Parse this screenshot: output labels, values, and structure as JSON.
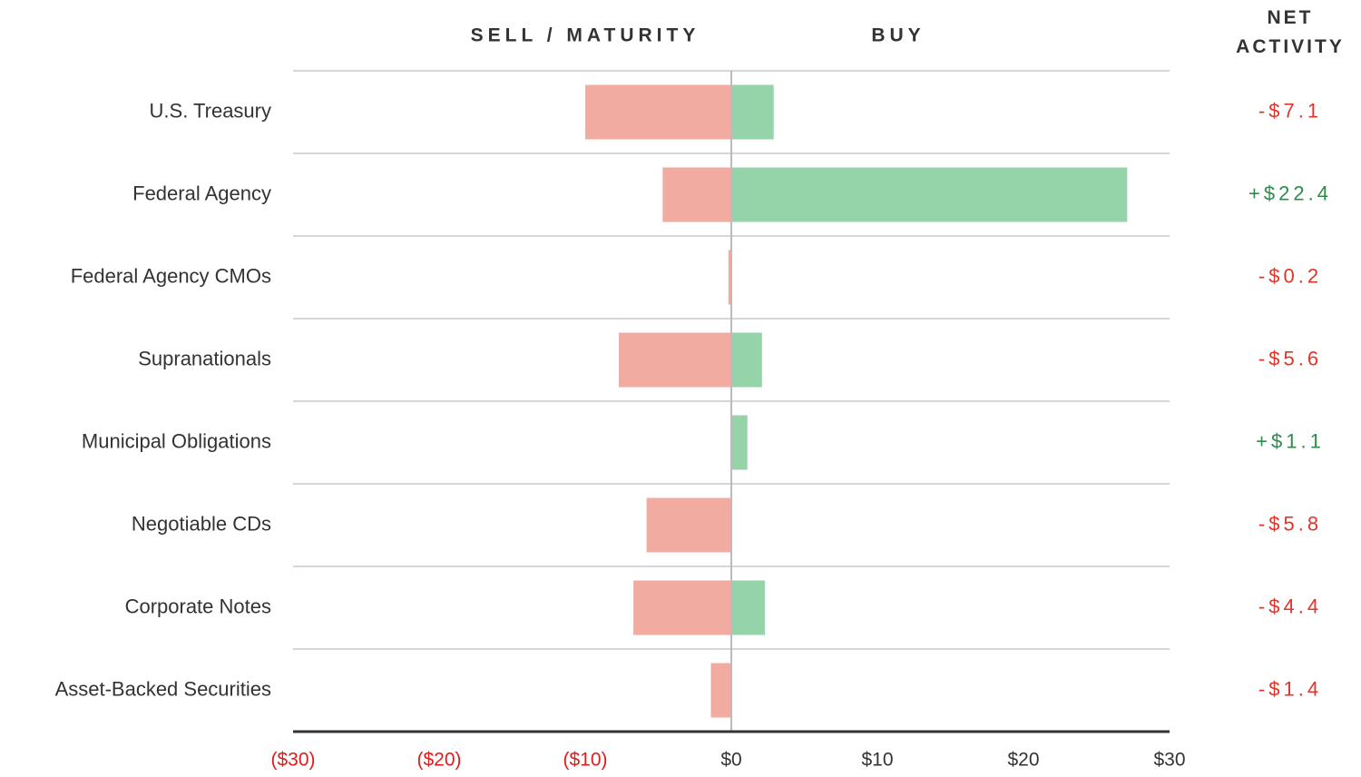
{
  "chart_data": {
    "type": "diverging_bar",
    "categories": [
      "U.S. Treasury",
      "Federal Agency",
      "Federal Agency CMOs",
      "Supranationals",
      "Municipal Obligations",
      "Negotiable CDs",
      "Corporate Notes",
      "Asset-Backed Securities"
    ],
    "series": [
      {
        "name": "SELL / MATURITY",
        "color": "#f2aba0",
        "values": [
          -10.0,
          -4.7,
          -0.2,
          -7.7,
          0,
          -5.8,
          -6.7,
          -1.4
        ]
      },
      {
        "name": "BUY",
        "color": "#95d3a8",
        "values": [
          2.9,
          27.1,
          0,
          2.1,
          1.1,
          0,
          2.3,
          0
        ]
      }
    ],
    "net": {
      "name": "NET ACTIVITY",
      "values": [
        -7.1,
        22.4,
        -0.2,
        -5.6,
        1.1,
        -5.8,
        -4.4,
        -1.4
      ],
      "value_labels": [
        "-$7.1",
        "+$22.4",
        "-$0.2",
        "-$5.6",
        "+$1.1",
        "-$5.8",
        "-$4.4",
        "-$1.4"
      ],
      "positive_color": "#2e8b4a",
      "negative_color": "#e0352b"
    },
    "xlim": [
      -30,
      30
    ],
    "xticks": [
      {
        "value": -30,
        "label": "($30)"
      },
      {
        "value": -20,
        "label": "($20)"
      },
      {
        "value": -10,
        "label": "($10)"
      },
      {
        "value": 0,
        "label": "$0"
      },
      {
        "value": 10,
        "label": "$10"
      },
      {
        "value": 20,
        "label": "$20"
      },
      {
        "value": 30,
        "label": "$30"
      }
    ],
    "negative_tick_color": "#e01b1b",
    "tick_color": "#333333"
  }
}
